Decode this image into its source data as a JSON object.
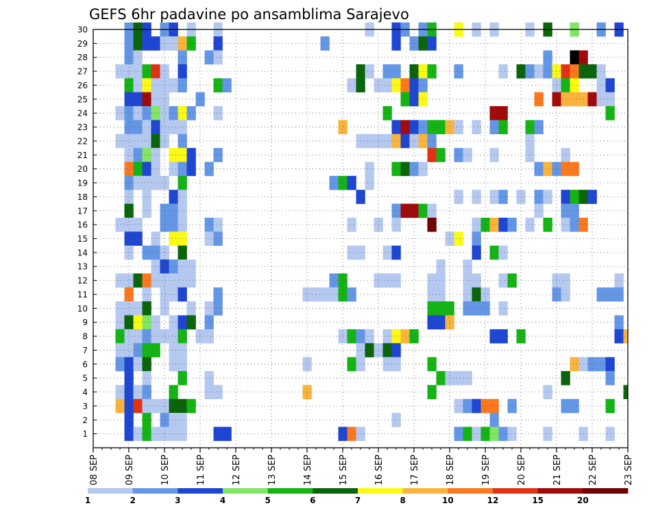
{
  "chart_data": {
    "type": "heatmap",
    "title": "GEFS 6hr padavine po ansamblima Sarajevo",
    "xlabel": "",
    "ylabel": "",
    "x_ticks": [
      "08 SEP",
      "09 SEP",
      "10 SEP",
      "11 SEP",
      "12 SEP",
      "13 SEP",
      "14 SEP",
      "15 SEP",
      "16 SEP",
      "17 SEP",
      "18 SEP",
      "19 SEP",
      "20 SEP",
      "21 SEP",
      "22 SEP",
      "23 SEP"
    ],
    "x_unit": "6-hour steps from 08 SEP 00Z",
    "xlim": [
      0,
      60
    ],
    "y_ticks": [
      1,
      2,
      3,
      4,
      5,
      6,
      7,
      8,
      9,
      10,
      11,
      12,
      13,
      14,
      15,
      16,
      17,
      18,
      19,
      20,
      21,
      22,
      23,
      24,
      25,
      26,
      27,
      28,
      29,
      30
    ],
    "ylim": [
      0,
      30
    ],
    "grid": true,
    "color_scale": {
      "labels": [
        "1",
        "2",
        "3",
        "4",
        "5",
        "6",
        "7",
        "8",
        "10",
        "12",
        "15",
        "20"
      ],
      "colors": [
        "#b4c8f0",
        "#6496e6",
        "#1e46d2",
        "#82e664",
        "#14b414",
        "#0a640a",
        "#fafa14",
        "#fab43c",
        "#fa781e",
        "#e13214",
        "#a00a0a",
        "#6e0000"
      ]
    },
    "cells": [
      [
        30,
        "4:2,5:6,6:3,8:2,9:3,11:1,14:1,31:1,34:3,35:2,37:2,38:5,43:1,45:1,49:1,51:6,54:4,57:2,59:3,41:7"
      ],
      [
        29,
        "4:2,5:6,6:3,7:3,8:1,9:1,10:8,11:5,14:3,26:2,34:3,36:2,37:6,38:3"
      ],
      [
        28,
        "4:2,5:1,10:2,13:2,14:1,51:2,54:13,55:11"
      ],
      [
        27,
        "3:1,4:1,5:1,6:5,7:10,8:1,10:3,30:6,31:1,33:2,34:2,36:6,37:7,38:5,41:2,46:1,48:6,49:2,50:1,51:2,52:7,53:10,54:9,55:6,56:6,57:1"
      ],
      [
        26,
        "4:5,5:1,6:7,7:1,8:1,9:1,10:2,14:5,15:2,29:1,30:6,32:1,33:1,34:7,35:9,36:3,37:2,52:1,53:5,54:7,57:1,58:3"
      ],
      [
        25,
        "4:3,5:3,6:11,7:1,8:1,12:2,35:5,36:3,37:7,50:9,52:11,53:8,54:8,55:8,56:11,57:1,58:1"
      ],
      [
        24,
        "3:1,4:2,5:1,6:2,7:4,8:1,9:2,10:7,11:2,14:1,33:5,45:11,46:11,58:5"
      ],
      [
        23,
        "4:2,5:2,6:1,7:3,8:1,9:1,10:1,28:8,34:3,35:11,36:3,37:2,38:5,39:5,40:8,41:1,43:1,45:2,46:5,49:5,50:2"
      ],
      [
        22,
        "3:1,4:1,5:1,6:1,7:6,8:1,10:2,30:1,31:1,32:1,33:1,34:8,35:3,36:1,37:8,38:2,49:1"
      ],
      [
        21,
        "4:1,5:2,6:4,7:1,9:7,10:7,11:3,14:2,38:10,39:5,41:2,42:1,45:1,49:1,53:1"
      ],
      [
        20,
        "4:9,5:5,6:3,7:1,9:1,10:2,11:3,13:2,31:1,34:5,35:6,36:2,37:1,50:2,51:8,52:2,53:9,54:9"
      ],
      [
        19,
        "4:2,5:1,6:1,7:1,8:1,10:5,27:2,28:5,29:3,31:1"
      ],
      [
        18,
        "4:1,6:1,9:3,10:1,30:3,41:1,43:1,45:1,46:2,48:1,50:2,51:1,53:3,54:5,55:6,56:3"
      ],
      [
        17,
        "4:6,6:1,8:2,9:2,10:1,34:2,35:11,36:11,37:5,38:1,50:1,53:2,54:2"
      ],
      [
        16,
        "3:1,4:1,5:1,8:2,9:2,10:1,13:2,14:1,29:1,32:1,34:1,38:12,43:1,44:5,45:8,46:3,47:2,49:1,51:5,53:1,54:2,55:9"
      ],
      [
        15,
        "4:3,5:3,7:1,9:7,10:7,13:1,14:2,40:1,41:7,43:2"
      ],
      [
        14,
        "4:1,6:2,7:2,8:1,10:6,29:1,30:1,33:1,34:3,43:3,45:5,46:1"
      ],
      [
        13,
        "7:1,8:3,9:2,10:1,11:1,39:1,42:1"
      ],
      [
        12,
        "3:1,4:1,5:6,6:9,7:1,8:1,9:1,10:1,11:1,27:2,28:5,32:1,33:1,34:1,38:1,39:1,42:1,43:1,46:1,47:5,52:1,53:1,59:1"
      ],
      [
        11,
        "4:9,6:1,8:1,9:1,10:3,14:2,24:1,25:1,26:1,27:1,28:5,29:2,38:1,39:1,42:1,43:6,44:1,52:2,53:1,57:2,58:2,59:2"
      ],
      [
        10,
        "3:1,4:1,5:1,6:6,8:1,11:1,13:1,14:2,38:5,39:5,40:5,42:2,43:2,44:2,46:1"
      ],
      [
        9,
        "3:1,4:6,5:7,6:4,7:1,9:1,10:3,11:6,13:2,38:3,39:3,40:8,59:2"
      ],
      [
        8,
        "3:5,4:1,5:1,6:2,7:1,8:1,9:1,10:5,12:1,13:1,28:1,29:5,30:2,31:1,33:1,34:7,35:8,36:5,45:3,46:3,48:5,59:3,60:8"
      ],
      [
        7,
        "3:1,4:1,5:2,6:5,7:5,9:1,10:1,30:1,31:6,32:1,33:6,34:3"
      ],
      [
        6,
        "3:2,4:3,5:1,6:6,9:1,10:1,24:1,29:5,30:1,33:1,34:1,38:5,54:8,55:1,56:2,57:2,58:3"
      ],
      [
        5,
        "4:3,6:1,10:5,13:1,39:5,40:1,41:1,42:1,53:6,58:2"
      ],
      [
        4,
        "3:1,4:3,5:1,6:2,9:5,13:1,14:1,24:8,38:5,51:1,60:6"
      ],
      [
        3,
        "3:8,4:3,5:10,6:1,7:1,8:1,9:6,10:6,11:5,41:1,42:2,43:3,44:9,45:9,47:2,53:2,54:2,58:5"
      ],
      [
        2,
        "4:3,6:5,8:2,9:1,10:1,34:1,45:2"
      ],
      [
        1,
        "4:3,5:1,6:5,7:1,8:1,9:1,10:1,14:3,15:3,28:3,29:9,30:1,41:2,42:5,43:1,44:5,45:4,46:2,47:1,51:1,55:1,58:1"
      ]
    ]
  }
}
